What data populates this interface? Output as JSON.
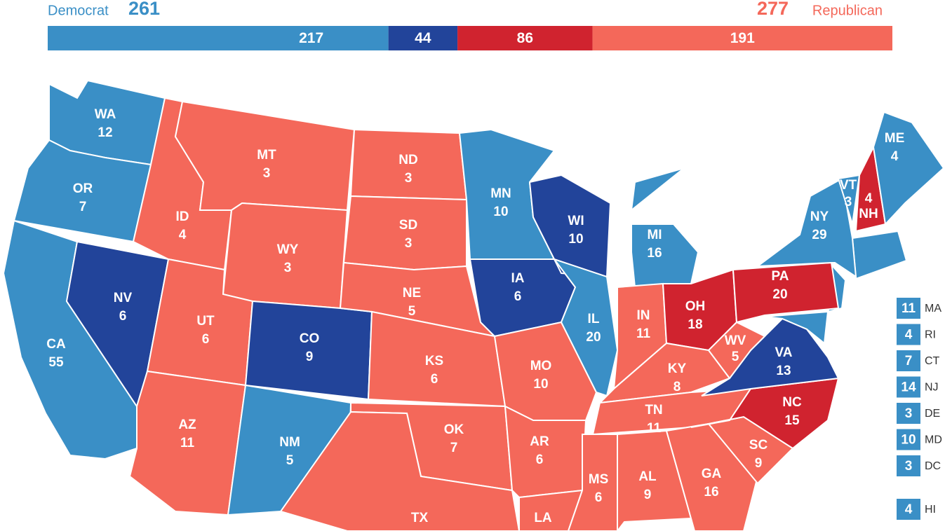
{
  "header": {
    "dem_label": "Democrat",
    "dem_total": 261,
    "rep_total": 277,
    "rep_label": "Republican"
  },
  "bar": [
    {
      "value": 217,
      "color": "#3a8fc6"
    },
    {
      "value": 44,
      "color": "#22449a"
    },
    {
      "value": 86,
      "color": "#d0232f"
    },
    {
      "value": 191,
      "color": "#f4685a"
    }
  ],
  "states": [
    {
      "label": "WA",
      "votes": 12,
      "color": "#3a8fc6"
    },
    {
      "label": "OR",
      "votes": 7,
      "color": "#3a8fc6"
    },
    {
      "label": "CA",
      "votes": 55,
      "color": "#3a8fc6"
    },
    {
      "label": "NV",
      "votes": 6,
      "color": "#22449a"
    },
    {
      "label": "ID",
      "votes": 4,
      "color": "#f4685a"
    },
    {
      "label": "MT",
      "votes": 3,
      "color": "#f4685a"
    },
    {
      "label": "WY",
      "votes": 3,
      "color": "#f4685a"
    },
    {
      "label": "UT",
      "votes": 6,
      "color": "#f4685a"
    },
    {
      "label": "CO",
      "votes": 9,
      "color": "#22449a"
    },
    {
      "label": "AZ",
      "votes": 11,
      "color": "#f4685a"
    },
    {
      "label": "NM",
      "votes": 5,
      "color": "#3a8fc6"
    },
    {
      "label": "ND",
      "votes": 3,
      "color": "#f4685a"
    },
    {
      "label": "SD",
      "votes": 3,
      "color": "#f4685a"
    },
    {
      "label": "NE",
      "votes": 5,
      "color": "#f4685a"
    },
    {
      "label": "KS",
      "votes": 6,
      "color": "#f4685a"
    },
    {
      "label": "OK",
      "votes": 7,
      "color": "#f4685a"
    },
    {
      "label": "TX",
      "color": "#f4685a"
    },
    {
      "label": "MN",
      "votes": 10,
      "color": "#3a8fc6"
    },
    {
      "label": "IA",
      "votes": 6,
      "color": "#22449a"
    },
    {
      "label": "MO",
      "votes": 10,
      "color": "#f4685a"
    },
    {
      "label": "AR",
      "votes": 6,
      "color": "#f4685a"
    },
    {
      "label": "LA",
      "color": "#f4685a"
    },
    {
      "label": "WI",
      "votes": 10,
      "color": "#22449a"
    },
    {
      "label": "IL",
      "votes": 20,
      "color": "#3a8fc6"
    },
    {
      "label": "MI",
      "votes": 16,
      "color": "#3a8fc6"
    },
    {
      "label": "IN",
      "votes": 11,
      "color": "#f4685a"
    },
    {
      "label": "OH",
      "votes": 18,
      "color": "#d0232f"
    },
    {
      "label": "KY",
      "votes": 8,
      "color": "#f4685a"
    },
    {
      "label": "TN",
      "votes": 11,
      "color": "#f4685a"
    },
    {
      "label": "MS",
      "votes": 6,
      "color": "#f4685a"
    },
    {
      "label": "AL",
      "votes": 9,
      "color": "#f4685a"
    },
    {
      "label": "GA",
      "votes": 16,
      "color": "#f4685a"
    },
    {
      "label": "SC",
      "votes": 9,
      "color": "#f4685a"
    },
    {
      "label": "NC",
      "votes": 15,
      "color": "#d0232f"
    },
    {
      "label": "VA",
      "votes": 13,
      "color": "#22449a"
    },
    {
      "label": "WV",
      "votes": 5,
      "color": "#f4685a"
    },
    {
      "label": "PA",
      "votes": 20,
      "color": "#d0232f"
    },
    {
      "label": "NY",
      "votes": 29,
      "color": "#3a8fc6"
    },
    {
      "label": "VT",
      "votes": 3,
      "color": "#3a8fc6"
    },
    {
      "label": "NH",
      "votes": 4,
      "color": "#d0232f"
    },
    {
      "label": "ME",
      "votes": 4,
      "color": "#3a8fc6"
    }
  ],
  "small_states": [
    {
      "label": "MA",
      "votes": 11,
      "color": "#3a8fc6"
    },
    {
      "label": "RI",
      "votes": 4,
      "color": "#3a8fc6"
    },
    {
      "label": "CT",
      "votes": 7,
      "color": "#3a8fc6"
    },
    {
      "label": "NJ",
      "votes": 14,
      "color": "#3a8fc6"
    },
    {
      "label": "DE",
      "votes": 3,
      "color": "#3a8fc6"
    },
    {
      "label": "MD",
      "votes": 10,
      "color": "#3a8fc6"
    },
    {
      "label": "DC",
      "votes": 3,
      "color": "#3a8fc6"
    },
    {
      "label": "HI",
      "votes": 4,
      "color": "#3a8fc6"
    }
  ]
}
